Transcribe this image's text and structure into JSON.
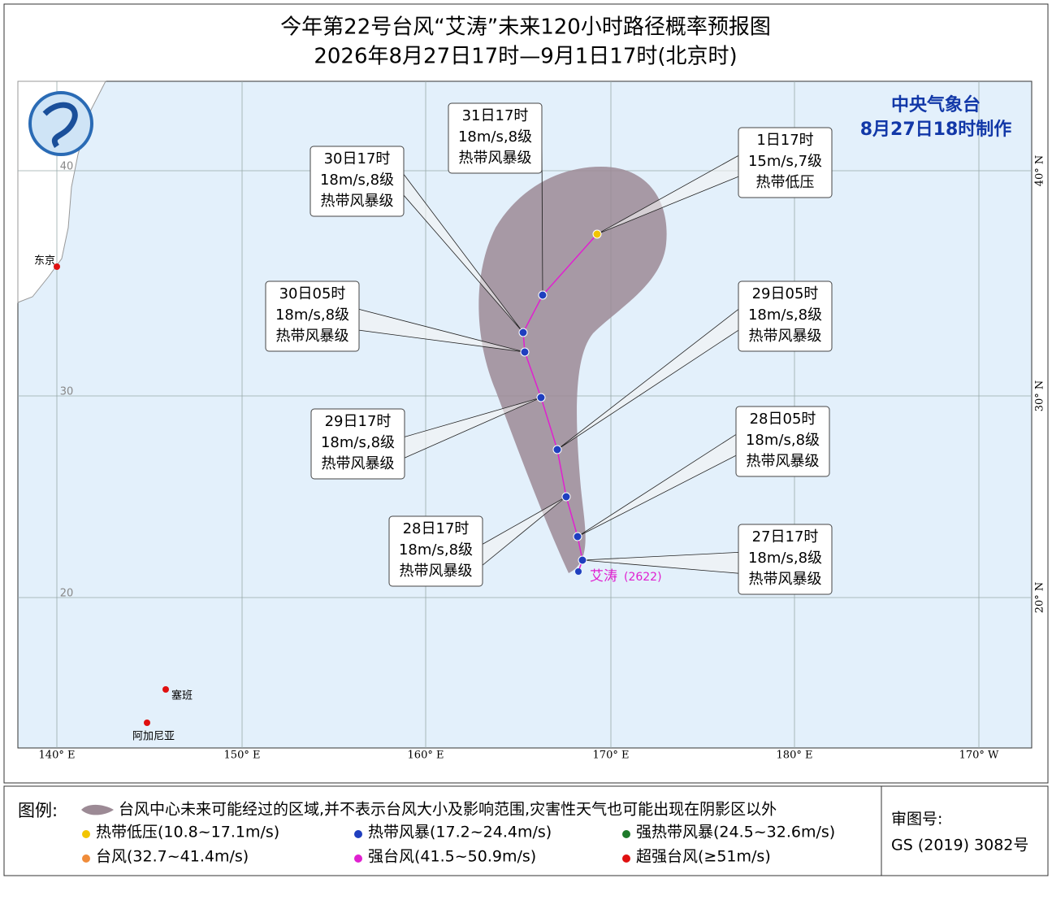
{
  "header": {
    "title": "今年第22号台风“艾涛”未来120小时路径概率预报图",
    "subtitle": "2026年8月27日17时—9月1日17时(北京时)"
  },
  "agency": {
    "name": "中央气象台",
    "issued": "8月27日18时制作"
  },
  "map": {
    "lon_labels": [
      "140° E",
      "150° E",
      "160° E",
      "170° E",
      "180° E",
      "170° W"
    ],
    "lat_labels": [
      "40° N",
      "30° N",
      "20° N"
    ],
    "lat_inner": [
      "40",
      "30",
      "20"
    ],
    "places": [
      "东京",
      "塞班",
      "阿加尼亚"
    ],
    "storm": {
      "name": "艾涛",
      "code": "(2622)"
    }
  },
  "forecasts": [
    {
      "time": "27日17时",
      "wind": "18m/s,8级",
      "level": "热带风暴级"
    },
    {
      "time": "28日05时",
      "wind": "18m/s,8级",
      "level": "热带风暴级"
    },
    {
      "time": "28日17时",
      "wind": "18m/s,8级",
      "level": "热带风暴级"
    },
    {
      "time": "29日05时",
      "wind": "18m/s,8级",
      "level": "热带风暴级"
    },
    {
      "time": "29日17时",
      "wind": "18m/s,8级",
      "level": "热带风暴级"
    },
    {
      "time": "30日05时",
      "wind": "18m/s,8级",
      "level": "热带风暴级"
    },
    {
      "time": "30日17时",
      "wind": "18m/s,8级",
      "level": "热带风暴级"
    },
    {
      "time": "31日17时",
      "wind": "18m/s,8级",
      "level": "热带风暴级"
    },
    {
      "time": "1日17时",
      "wind": "15m/s,7级",
      "level": "热带低压"
    }
  ],
  "legend": {
    "title": "图例:",
    "cone": "台风中心未来可能经过的区域,并不表示台风大小及影响范围,灾害性天气也可能出现在阴影区以外",
    "categories": [
      {
        "name": "热带低压(10.8~17.1m/s)",
        "color": "#f2c500"
      },
      {
        "name": "热带风暴(17.2~24.4m/s)",
        "color": "#1f3fbf"
      },
      {
        "name": "强热带风暴(24.5~32.6m/s)",
        "color": "#1e7a2a"
      },
      {
        "name": "台风(32.7~41.4m/s)",
        "color": "#f08c3a"
      },
      {
        "name": "强台风(41.5~50.9m/s)",
        "color": "#e020d0"
      },
      {
        "name": "超强台风(≥51m/s)",
        "color": "#e01010"
      }
    ]
  },
  "review": {
    "label": "审图号:",
    "number": "GS (2019) 3082号"
  }
}
